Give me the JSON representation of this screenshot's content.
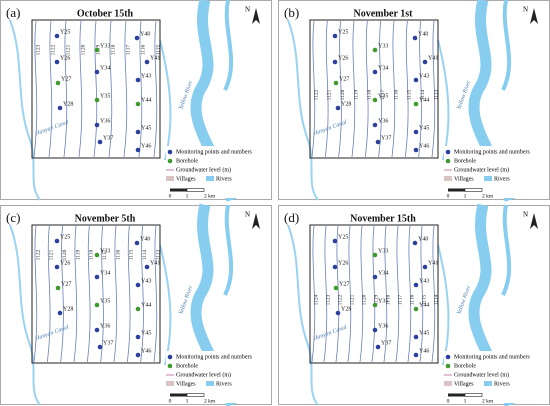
{
  "panels": [
    {
      "label": "(a)",
      "title": "October 15th",
      "north": "N",
      "monitoring_points": [
        "Y25",
        "Y26",
        "Y28",
        "Y34",
        "Y36",
        "Y37",
        "Y40",
        "Y41",
        "Y43",
        "Y45",
        "Y46"
      ],
      "boreholes": [
        "Y27",
        "Y33",
        "Y35",
        "Y44"
      ],
      "contours": [
        "1123",
        "1122",
        "1121",
        "1120",
        "1119",
        "1118",
        "1117",
        "1116",
        "1115"
      ],
      "rivers": [
        "Yellow River",
        "Hanyan Canal"
      ]
    },
    {
      "label": "(b)",
      "title": "November 1st",
      "north": "N",
      "monitoring_points": [
        "Y25",
        "Y26",
        "Y28",
        "Y34",
        "Y36",
        "Y37",
        "Y40",
        "Y41",
        "Y43",
        "Y45",
        "Y46"
      ],
      "boreholes": [
        "Y27",
        "Y33",
        "Y35",
        "Y44"
      ],
      "contours": [
        "1122",
        "1121",
        "1120",
        "1119",
        "1118",
        "1117",
        "1116",
        "1115",
        "1114",
        "1113"
      ],
      "rivers": [
        "Yellow River",
        "Hanyan Canal"
      ]
    },
    {
      "label": "(c)",
      "title": "November 5th",
      "north": "N",
      "monitoring_points": [
        "Y25",
        "Y26",
        "Y28",
        "Y34",
        "Y36",
        "Y37",
        "Y40",
        "Y41",
        "Y43",
        "Y45",
        "Y46"
      ],
      "boreholes": [
        "Y27",
        "Y33",
        "Y35",
        "Y44"
      ],
      "contours": [
        "1122",
        "1121",
        "1120",
        "1119",
        "1118",
        "1117",
        "1116",
        "1115",
        "1114",
        "1113"
      ],
      "rivers": [
        "Yellow River",
        "Hanyan Canal"
      ]
    },
    {
      "label": "(d)",
      "title": "November 15th",
      "north": "N",
      "monitoring_points": [
        "Y25",
        "Y26",
        "Y28",
        "Y34",
        "Y36",
        "Y37",
        "Y40",
        "Y41",
        "Y43",
        "Y45",
        "Y46"
      ],
      "boreholes": [
        "Y27",
        "Y33",
        "Y35",
        "Y44"
      ],
      "contours": [
        "1124",
        "1123",
        "1122",
        "1121",
        "1120",
        "1119",
        "1118",
        "1117",
        "1116",
        "1115",
        "1114"
      ],
      "rivers": [
        "Yellow River",
        "Hanyan Canal"
      ]
    }
  ],
  "legend": {
    "items": [
      "Monitoring points and numbers",
      "Borehole",
      "Groundwater level (m)",
      "Villages",
      "Rivers"
    ],
    "scale": [
      "0",
      "1",
      "2 km"
    ]
  }
}
